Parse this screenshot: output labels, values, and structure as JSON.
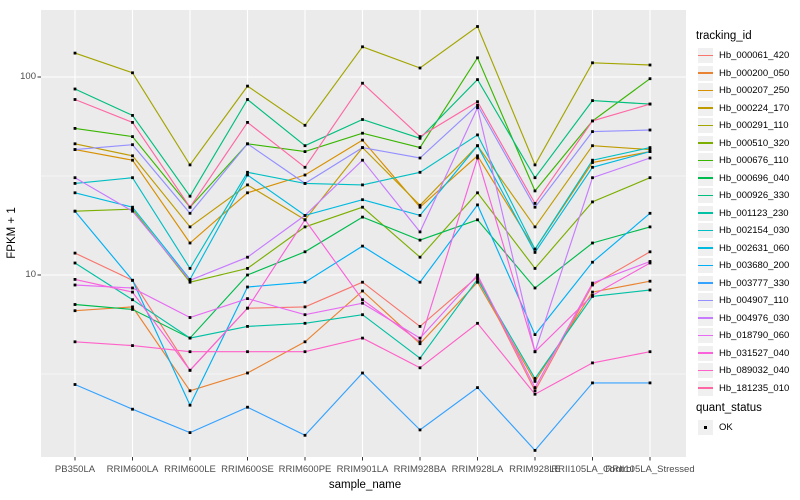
{
  "chart_data": {
    "type": "line",
    "title": "",
    "xlabel": "sample_name",
    "ylabel": "FPKM + 1",
    "y_scale": "log10",
    "ylim": [
      1.19,
      218
    ],
    "y_major_ticks": [
      100,
      10
    ],
    "y_tick_labels": [
      "100",
      "10"
    ],
    "y_minor_ticks": [
      31.62,
      3.162
    ],
    "grid": true,
    "panel_bg": "#EBEBEB",
    "grid_color": "#FFFFFF",
    "marker": {
      "shape": "square",
      "color": "#000000"
    },
    "categories": [
      "PB350LA",
      "RRIM600LA",
      "RRIM600LE",
      "RRIM600SE",
      "RRIM600PE",
      "RRIM901LA",
      "RRIM928BA",
      "RRIM928LA",
      "RRIM928LE",
      "RRII105LA_Control",
      "RRII105LA_Stressed"
    ],
    "legend": {
      "title": "tracking_id",
      "position": "right"
    },
    "legend2": {
      "title": "quant_status",
      "items": [
        {
          "label": "OK",
          "marker": "black-square"
        }
      ]
    },
    "series": [
      {
        "name": "Hb_000061_420",
        "color": "#F8766D",
        "values": [
          12.9,
          9.4,
          3.3,
          6.8,
          6.9,
          9.2,
          5.5,
          9.8,
          2.6,
          8.9,
          13.1
        ]
      },
      {
        "name": "Hb_000200_050",
        "color": "#EA8331",
        "values": [
          6.6,
          6.9,
          2.6,
          3.2,
          4.6,
          8.3,
          4.5,
          9.2,
          2.9,
          8.2,
          9.3
        ]
      },
      {
        "name": "Hb_000207_250",
        "color": "#D89000",
        "values": [
          43,
          38,
          14.5,
          26,
          32,
          48,
          22,
          40,
          13.5,
          37,
          42
        ]
      },
      {
        "name": "Hb_000224_170",
        "color": "#C09B00",
        "values": [
          46,
          40,
          17.5,
          28.5,
          19,
          44,
          22.5,
          45,
          17.5,
          45,
          43
        ]
      },
      {
        "name": "Hb_000291_110",
        "color": "#A3A500",
        "values": [
          132,
          105,
          36,
          90,
          57,
          142,
          111,
          180,
          36,
          118,
          115
        ]
      },
      {
        "name": "Hb_000510_320",
        "color": "#7CAE00",
        "values": [
          21,
          21.5,
          9.2,
          10.8,
          17.5,
          22,
          12.3,
          26,
          10.8,
          23.4,
          31
        ]
      },
      {
        "name": "Hb_000676_110",
        "color": "#39B600",
        "values": [
          55,
          50,
          22,
          46,
          42,
          52,
          44,
          125,
          26.6,
          60,
          98
        ]
      },
      {
        "name": "Hb_000696_040",
        "color": "#00BB4E",
        "values": [
          7.1,
          6.7,
          4.8,
          10,
          13.1,
          19.6,
          15,
          19,
          8.6,
          14.5,
          17.5
        ]
      },
      {
        "name": "Hb_000926_330",
        "color": "#00BF7D",
        "values": [
          87,
          64,
          25,
          77,
          45,
          61,
          49,
          97,
          31,
          76,
          73
        ]
      },
      {
        "name": "Hb_001123_230",
        "color": "#00C1A3",
        "values": [
          11.5,
          7.5,
          4.8,
          5.5,
          5.7,
          6.3,
          3.8,
          9.5,
          3.0,
          7.8,
          8.4
        ]
      },
      {
        "name": "Hb_002154_030",
        "color": "#00BFC4",
        "values": [
          29,
          31,
          10.8,
          33,
          29,
          28.5,
          33,
          51,
          13.5,
          38,
          44
        ]
      },
      {
        "name": "Hb_002631_060",
        "color": "#00BAE0",
        "values": [
          26,
          22,
          9.5,
          32,
          20,
          24,
          20,
          45,
          13,
          35,
          42
        ]
      },
      {
        "name": "Hb_003680_200",
        "color": "#00B0F6",
        "values": [
          21,
          9.4,
          2.2,
          8.7,
          9.2,
          14,
          9.2,
          22.6,
          5.0,
          11.6,
          20.5
        ]
      },
      {
        "name": "Hb_003777_330",
        "color": "#35A2FF",
        "values": [
          2.8,
          2.1,
          1.6,
          2.15,
          1.55,
          3.2,
          1.65,
          2.7,
          1.3,
          2.85,
          2.85
        ]
      },
      {
        "name": "Hb_004907_110",
        "color": "#9590FF",
        "values": [
          43,
          45.5,
          20.5,
          46,
          29,
          44,
          39,
          72,
          22,
          53,
          54
        ]
      },
      {
        "name": "Hb_004976_030",
        "color": "#C77CFF",
        "values": [
          31,
          21,
          9.4,
          12.3,
          20,
          38,
          16.5,
          70,
          4.1,
          31,
          39
        ]
      },
      {
        "name": "Hb_018790_060",
        "color": "#E76BF3",
        "values": [
          8.9,
          8.6,
          6.1,
          7.6,
          6.3,
          7.2,
          4.8,
          10,
          2.7,
          9.1,
          11.7
        ]
      },
      {
        "name": "Hb_031527_040",
        "color": "#FA62DB",
        "values": [
          9.5,
          8.2,
          3.3,
          6.8,
          19,
          7.5,
          4.6,
          39,
          4.1,
          7.9,
          11.5
        ]
      },
      {
        "name": "Hb_089032_040",
        "color": "#FF61C9",
        "values": [
          4.6,
          4.4,
          4.1,
          4.1,
          4.1,
          4.8,
          3.4,
          5.7,
          2.5,
          3.6,
          4.1
        ]
      },
      {
        "name": "Hb_181235_010",
        "color": "#FF67A4",
        "values": [
          77,
          59,
          22,
          59,
          35,
          93,
          50,
          75,
          23,
          60,
          73
        ]
      }
    ]
  }
}
